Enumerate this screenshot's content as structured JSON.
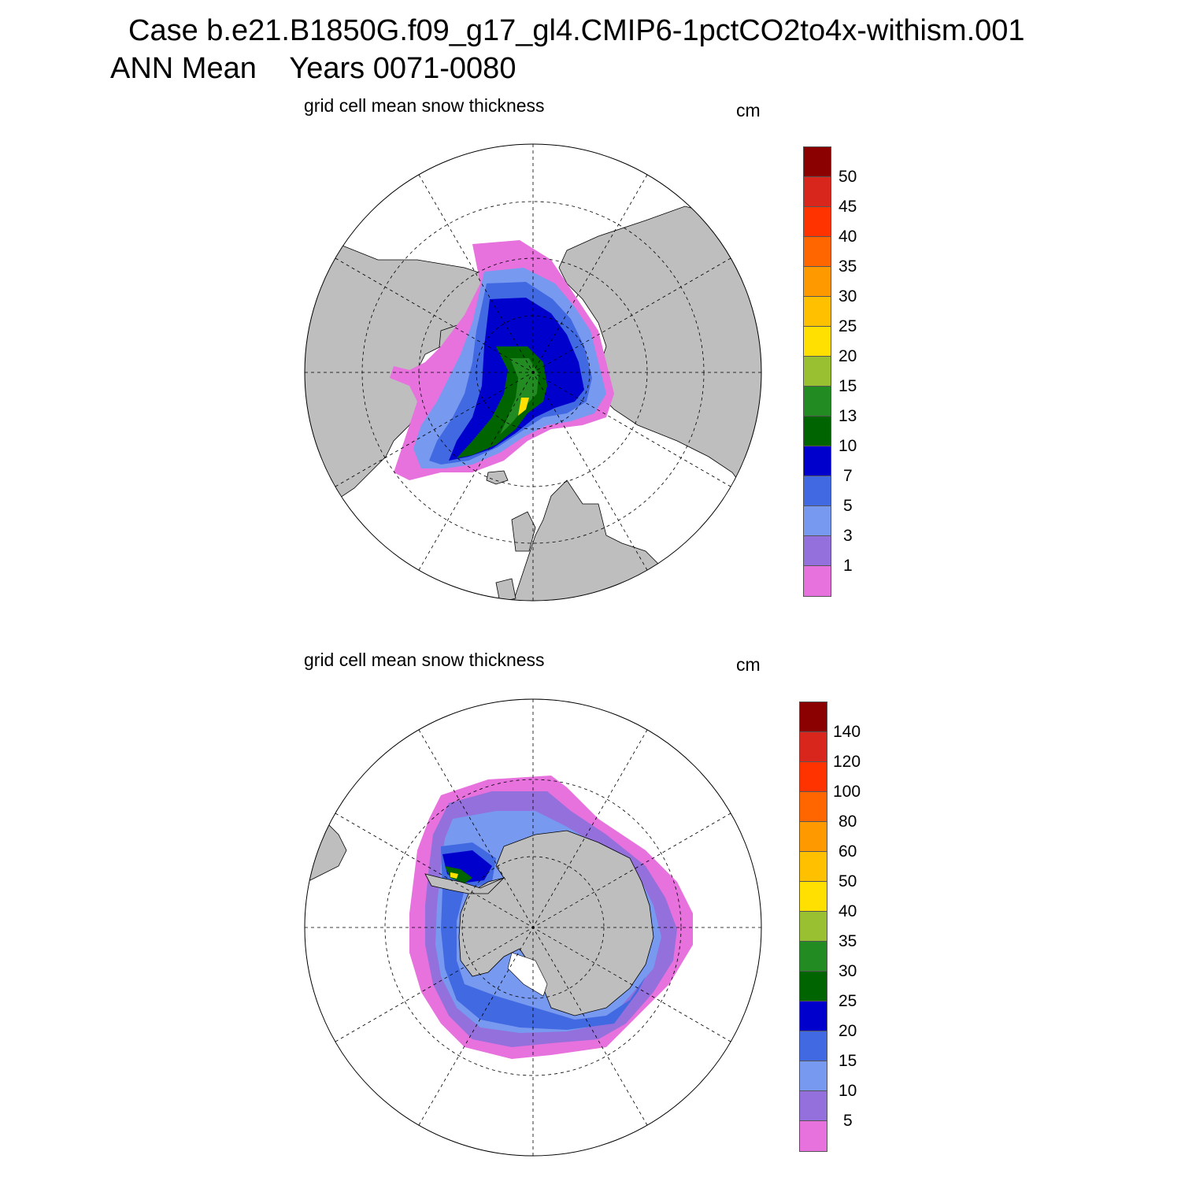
{
  "header": {
    "case_title": "Case b.e21.B1850G.f09_g17_gl4.CMIP6-1pctCO2to4x-withism.001",
    "period_title": "ANN Mean    Years 0071-0080"
  },
  "panels": [
    {
      "hemisphere": "north",
      "title": "grid cell mean snow thickness",
      "units": "cm",
      "colorbar": {
        "labels": [
          "50",
          "45",
          "40",
          "35",
          "30",
          "25",
          "20",
          "15",
          "13",
          "10",
          "7",
          "5",
          "3",
          "1"
        ],
        "colors": [
          "#8b0000",
          "#d9261c",
          "#ff3300",
          "#ff6600",
          "#ff9900",
          "#ffc000",
          "#ffe000",
          "#98c030",
          "#228b22",
          "#006400",
          "#0000cd",
          "#4169e1",
          "#7899f0",
          "#9370db",
          "#e771dd"
        ]
      }
    },
    {
      "hemisphere": "south",
      "title": "grid cell mean snow thickness",
      "units": "cm",
      "colorbar": {
        "labels": [
          "140",
          "120",
          "100",
          "80",
          "60",
          "50",
          "40",
          "35",
          "30",
          "25",
          "20",
          "15",
          "10",
          "5"
        ],
        "colors": [
          "#8b0000",
          "#d9261c",
          "#ff3300",
          "#ff6600",
          "#ff9900",
          "#ffc000",
          "#ffe000",
          "#98c030",
          "#228b22",
          "#006400",
          "#0000cd",
          "#4169e1",
          "#7899f0",
          "#9370db",
          "#e771dd"
        ]
      }
    }
  ]
}
